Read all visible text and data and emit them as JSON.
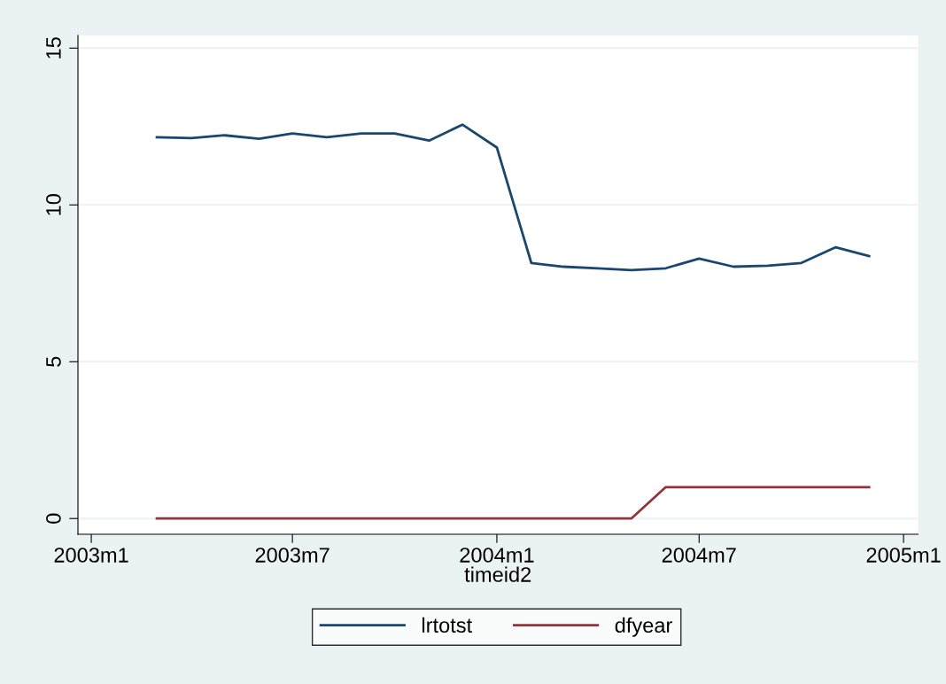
{
  "chart_data": {
    "type": "line",
    "xlabel": "timeid2",
    "x": [
      "2003-03",
      "2003-04",
      "2003-05",
      "2003-06",
      "2003-07",
      "2003-08",
      "2003-09",
      "2003-10",
      "2003-11",
      "2003-12",
      "2004-01",
      "2004-02",
      "2004-03",
      "2004-04",
      "2004-05",
      "2004-06",
      "2004-07",
      "2004-08",
      "2004-09",
      "2004-10",
      "2004-11",
      "2004-12"
    ],
    "series": [
      {
        "name": "lrtotst",
        "color": "#1a476f",
        "values": [
          12.16,
          12.13,
          12.22,
          12.11,
          12.28,
          12.16,
          12.28,
          12.28,
          12.05,
          12.56,
          11.83,
          8.15,
          8.03,
          7.98,
          7.92,
          7.98,
          8.29,
          8.03,
          8.06,
          8.15,
          8.65,
          8.37
        ]
      },
      {
        "name": "dfyear",
        "color": "#90353b",
        "values": [
          0,
          0,
          0,
          0,
          0,
          0,
          0,
          0,
          0,
          0,
          0,
          0,
          0,
          0,
          0,
          1,
          1,
          1,
          1,
          1,
          1,
          1
        ]
      }
    ],
    "xlim": [
      "2002-12-20",
      "2005-01-14"
    ],
    "xticks": [
      {
        "value": "2003-01",
        "label": "2003m1"
      },
      {
        "value": "2003-07",
        "label": "2003m7"
      },
      {
        "value": "2004-01",
        "label": "2004m1"
      },
      {
        "value": "2004-07",
        "label": "2004m7"
      },
      {
        "value": "2005-01",
        "label": "2005m1"
      }
    ],
    "ylim": [
      -0.5,
      15.4
    ],
    "yticks": [
      0,
      5,
      10,
      15
    ],
    "grid": "y",
    "legend": "bottom",
    "marker": "none",
    "line_style": "solid"
  }
}
